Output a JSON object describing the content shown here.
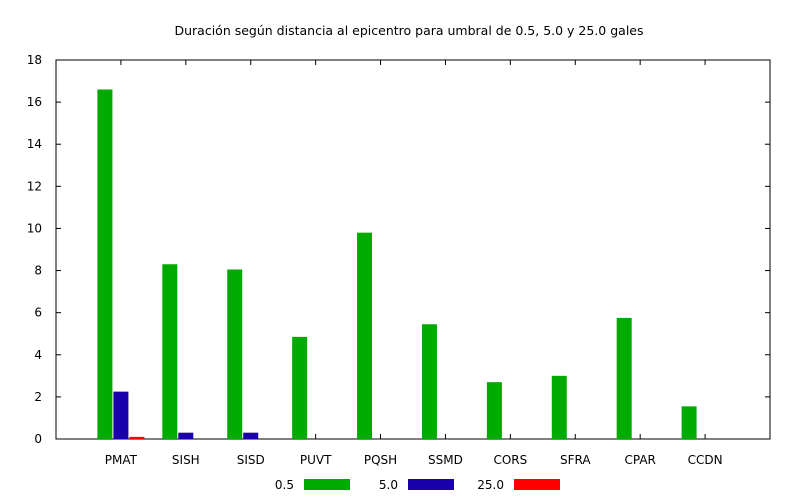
{
  "chart_data": {
    "type": "bar",
    "title": "Duración según distancia al epicentro para umbral de 0.5, 5.0 y 25.0 gales",
    "xlabel": "",
    "ylabel": "",
    "categories": [
      "PMAT",
      "SISH",
      "SISD",
      "PUVT",
      "PQSH",
      "SSMD",
      "CORS",
      "SFRA",
      "CPAR",
      "CCDN"
    ],
    "series": [
      {
        "name": "0.5",
        "color": "#00aa00",
        "values": [
          16.6,
          8.3,
          8.05,
          4.85,
          9.8,
          5.45,
          2.7,
          3.0,
          5.75,
          1.55
        ]
      },
      {
        "name": "5.0",
        "color": "#1a00aa",
        "values": [
          2.25,
          0.3,
          0.3,
          0,
          0,
          0,
          0,
          0,
          0,
          0
        ]
      },
      {
        "name": "25.0",
        "color": "#ff0000",
        "values": [
          0.1,
          0,
          0,
          0,
          0,
          0,
          0,
          0,
          0,
          0
        ]
      }
    ],
    "ylim": [
      0,
      18
    ],
    "yticks": [
      "0",
      "2",
      "4",
      "6",
      "8",
      "10",
      "12",
      "14",
      "16",
      "18"
    ],
    "grid": false,
    "legend_position": "bottom"
  }
}
